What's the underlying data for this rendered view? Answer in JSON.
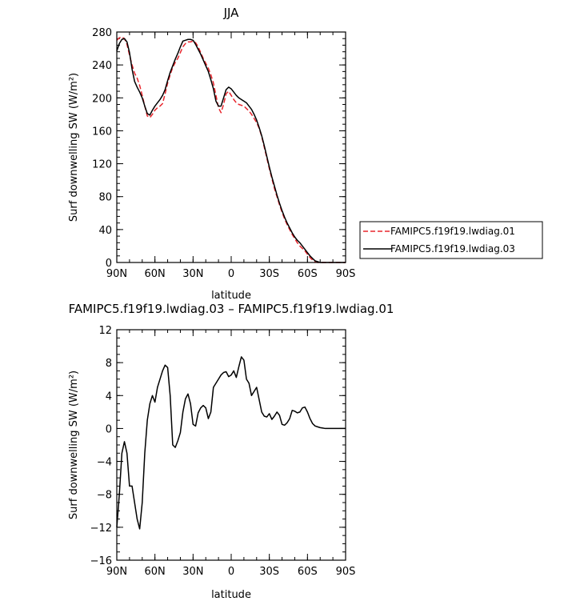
{
  "chart_data": [
    {
      "type": "line",
      "title": "JJA",
      "xlabel": "latitude",
      "ylabel": "Surf downwelling SW (W/m²)",
      "xlim": [
        90,
        -90
      ],
      "ylim": [
        0,
        280
      ],
      "x_ticks": [
        "90N",
        "60N",
        "30N",
        "0",
        "30S",
        "60S",
        "90S"
      ],
      "y_ticks": [
        "0",
        "40",
        "80",
        "120",
        "160",
        "200",
        "240",
        "280"
      ],
      "legend": {
        "placement": "right"
      },
      "series": [
        {
          "name": "FAMIPC5.f19f19.lwdiag.01",
          "color": "#e8262d",
          "dash": "dashed",
          "x": [
            90,
            88,
            86,
            84,
            82,
            80,
            78,
            76,
            74,
            72,
            70,
            68,
            66,
            64,
            62,
            60,
            58,
            56,
            54,
            52,
            50,
            48,
            46,
            44,
            42,
            40,
            38,
            36,
            34,
            32,
            30,
            28,
            26,
            24,
            22,
            20,
            18,
            16,
            14,
            12,
            10,
            8,
            6,
            4,
            2,
            0,
            -2,
            -4,
            -6,
            -8,
            -10,
            -12,
            -14,
            -16,
            -18,
            -20,
            -22,
            -24,
            -26,
            -28,
            -30,
            -32,
            -34,
            -36,
            -38,
            -40,
            -42,
            -44,
            -46,
            -48,
            -50,
            -52,
            -54,
            -56,
            -58,
            -60,
            -62,
            -64,
            -66,
            -68,
            -70,
            -72,
            -74,
            -76,
            -78,
            -80,
            -82,
            -84,
            -86,
            -88,
            -90
          ],
          "y": [
            270,
            273,
            274,
            272,
            265,
            252,
            240,
            230,
            224,
            215,
            203,
            190,
            178,
            176,
            180,
            185,
            188,
            190,
            193,
            205,
            218,
            228,
            237,
            243,
            248,
            255,
            262,
            266,
            268,
            268,
            269,
            267,
            262,
            255,
            248,
            242,
            236,
            228,
            218,
            203,
            188,
            182,
            192,
            205,
            208,
            203,
            198,
            194,
            192,
            191,
            190,
            187,
            184,
            180,
            175,
            170,
            163,
            153,
            140,
            127,
            114,
            102,
            90,
            80,
            70,
            61,
            53,
            46,
            40,
            34,
            29,
            24,
            20,
            17,
            14,
            10,
            6,
            3,
            1,
            0,
            0,
            0,
            0,
            0,
            0,
            0,
            0,
            0,
            0,
            0,
            0
          ]
        },
        {
          "name": "FAMIPC5.f19f19.lwdiag.03",
          "color": "#000000",
          "dash": "solid",
          "x": [
            90,
            88,
            86,
            84,
            82,
            80,
            78,
            76,
            74,
            72,
            70,
            68,
            66,
            64,
            62,
            60,
            58,
            56,
            54,
            52,
            50,
            48,
            46,
            44,
            42,
            40,
            38,
            36,
            34,
            32,
            30,
            28,
            26,
            24,
            22,
            20,
            18,
            16,
            14,
            12,
            10,
            8,
            6,
            4,
            2,
            0,
            -2,
            -4,
            -6,
            -8,
            -10,
            -12,
            -14,
            -16,
            -18,
            -20,
            -22,
            -24,
            -26,
            -28,
            -30,
            -32,
            -34,
            -36,
            -38,
            -40,
            -42,
            -44,
            -46,
            -48,
            -50,
            -52,
            -54,
            -56,
            -58,
            -60,
            -62,
            -64,
            -66,
            -68,
            -70,
            -72,
            -74,
            -76,
            -78,
            -80,
            -82,
            -84,
            -86,
            -88,
            -90
          ],
          "y": [
            257,
            266,
            271,
            272,
            268,
            255,
            235,
            220,
            213,
            207,
            200,
            190,
            181,
            179,
            185,
            190,
            194,
            198,
            203,
            210,
            221,
            231,
            239,
            247,
            254,
            262,
            269,
            270,
            271,
            271,
            270,
            265,
            259,
            253,
            246,
            239,
            232,
            222,
            211,
            196,
            190,
            190,
            200,
            210,
            213,
            211,
            207,
            203,
            200,
            198,
            196,
            194,
            190,
            186,
            180,
            173,
            164,
            154,
            142,
            129,
            116,
            104,
            93,
            82,
            72,
            63,
            55,
            48,
            42,
            36,
            31,
            27,
            24,
            20,
            16,
            12,
            8,
            5,
            2,
            1,
            0,
            0,
            0,
            0,
            0,
            0,
            0,
            0,
            0,
            0,
            0
          ]
        }
      ]
    },
    {
      "type": "line",
      "title": "FAMIPC5.f19f19.lwdiag.03 – FAMIPC5.f19f19.lwdiag.01",
      "xlabel": "latitude",
      "ylabel": "Surf downwelling SW (W/m²)",
      "xlim": [
        90,
        -90
      ],
      "ylim": [
        -16,
        12
      ],
      "x_ticks": [
        "90N",
        "60N",
        "30N",
        "0",
        "30S",
        "60S",
        "90S"
      ],
      "y_ticks": [
        "−16",
        "−12",
        "−8",
        "−4",
        "0",
        "4",
        "8",
        "12"
      ],
      "series": [
        {
          "color": "#000000",
          "dash": "solid",
          "x": [
            90,
            88,
            86,
            84,
            82,
            80,
            78,
            76,
            74,
            72,
            70,
            68,
            66,
            64,
            62,
            60,
            58,
            56,
            54,
            52,
            50,
            48,
            46,
            44,
            42,
            40,
            38,
            36,
            34,
            32,
            30,
            28,
            26,
            24,
            22,
            20,
            18,
            16,
            14,
            12,
            10,
            8,
            6,
            4,
            2,
            0,
            -2,
            -4,
            -6,
            -8,
            -10,
            -12,
            -14,
            -16,
            -18,
            -20,
            -22,
            -24,
            -26,
            -28,
            -30,
            -32,
            -34,
            -36,
            -38,
            -40,
            -42,
            -44,
            -46,
            -48,
            -50,
            -52,
            -54,
            -56,
            -58,
            -60,
            -62,
            -64,
            -66,
            -68,
            -70,
            -72,
            -74,
            -76,
            -78,
            -80,
            -82,
            -84,
            -86,
            -88,
            -90
          ],
          "y": [
            -12,
            -8,
            -3,
            -1.6,
            -3,
            -7,
            -7,
            -9,
            -11,
            -12.2,
            -9,
            -3,
            1,
            3,
            4,
            3.2,
            5,
            6,
            7,
            7.7,
            7.4,
            4,
            -2,
            -2.3,
            -1.5,
            -0.5,
            2,
            3.6,
            4.2,
            3,
            0.5,
            0.3,
            1.9,
            2.5,
            2.8,
            2.5,
            1.2,
            2,
            5,
            5.5,
            6,
            6.5,
            6.8,
            6.9,
            6.3,
            6.5,
            7,
            6.2,
            7.5,
            8.7,
            8.3,
            6,
            5.5,
            4,
            4.5,
            5,
            3.5,
            2,
            1.5,
            1.4,
            1.8,
            1.1,
            1.5,
            2,
            1.6,
            0.5,
            0.4,
            0.7,
            1.2,
            2.2,
            2.1,
            1.9,
            2,
            2.5,
            2.6,
            2,
            1.2,
            0.6,
            0.3,
            0.2,
            0.1,
            0.05,
            0,
            0,
            0,
            0,
            0,
            0,
            0,
            0,
            0
          ]
        }
      ]
    }
  ]
}
